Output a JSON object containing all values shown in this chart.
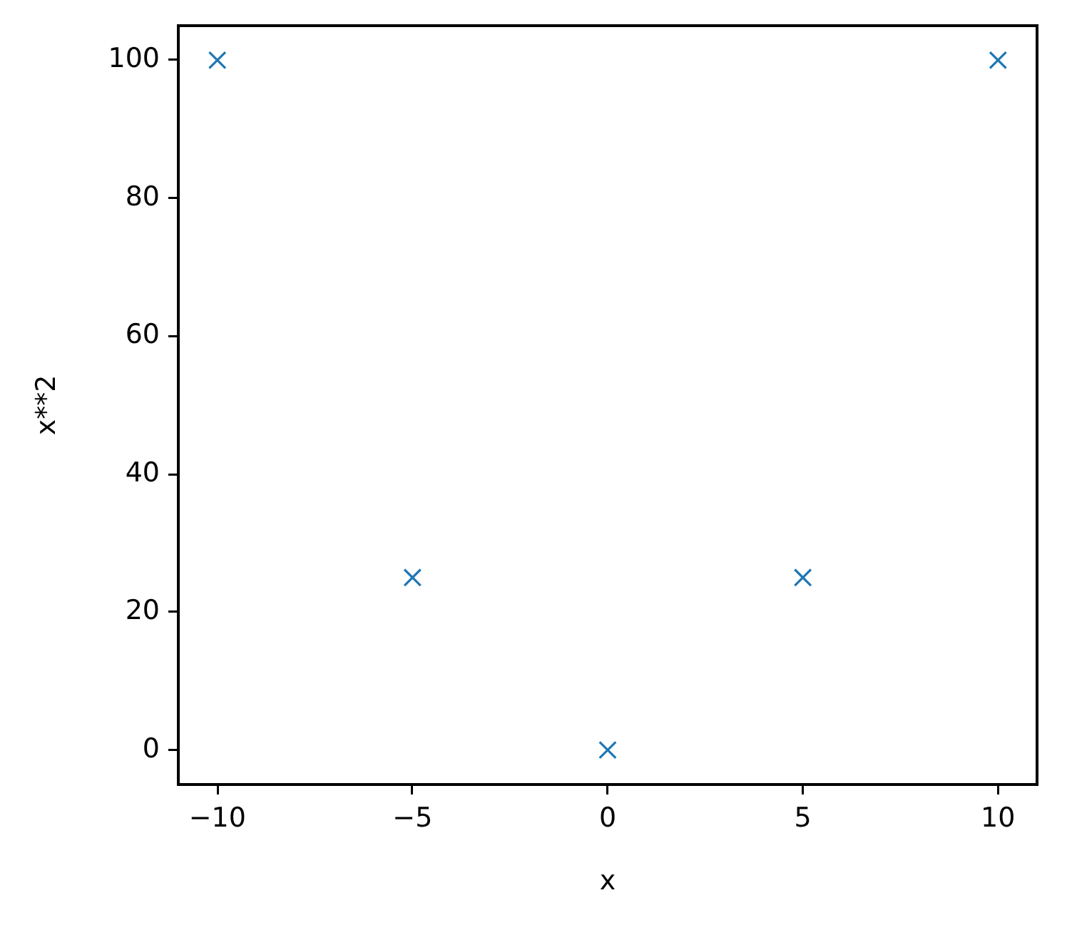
{
  "chart_data": {
    "type": "scatter",
    "xlabel": "x",
    "ylabel": "x**2",
    "x": [
      -10,
      -5,
      0,
      5,
      10
    ],
    "series": [
      {
        "color": "#1f77b4",
        "values": [
          100,
          25,
          0,
          25,
          100
        ]
      }
    ],
    "xlim": [
      -11,
      11
    ],
    "ylim": [
      -5,
      105
    ],
    "xticks": [
      {
        "value": -10,
        "label": "−10"
      },
      {
        "value": -5,
        "label": "−5"
      },
      0,
      5,
      10
    ],
    "yticks": [
      0,
      20,
      40,
      60,
      80,
      100
    ],
    "marker": "cross"
  }
}
